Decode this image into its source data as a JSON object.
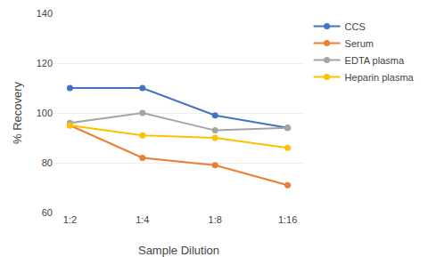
{
  "chart_data": {
    "type": "line",
    "categories": [
      "1:2",
      "1:4",
      "1:8",
      "1:16"
    ],
    "series": [
      {
        "name": "CCS",
        "color": "#4472C4",
        "marker": "circle",
        "values": [
          110,
          110,
          99,
          94
        ]
      },
      {
        "name": "Serum",
        "color": "#ED7D31",
        "marker": "circle",
        "values": [
          95,
          82,
          79,
          71
        ]
      },
      {
        "name": "EDTA plasma",
        "color": "#A5A5A5",
        "marker": "circle",
        "values": [
          96,
          100,
          93,
          94
        ]
      },
      {
        "name": "Heparin plasma",
        "color": "#FFC000",
        "marker": "circle",
        "values": [
          95,
          91,
          90,
          86
        ]
      }
    ],
    "x_label": "Sample Dilution",
    "y_label": "% Recovery",
    "ylim": [
      60,
      140
    ],
    "yticks": [
      60,
      80,
      100,
      120,
      140
    ],
    "grid": true,
    "legend": "right"
  }
}
